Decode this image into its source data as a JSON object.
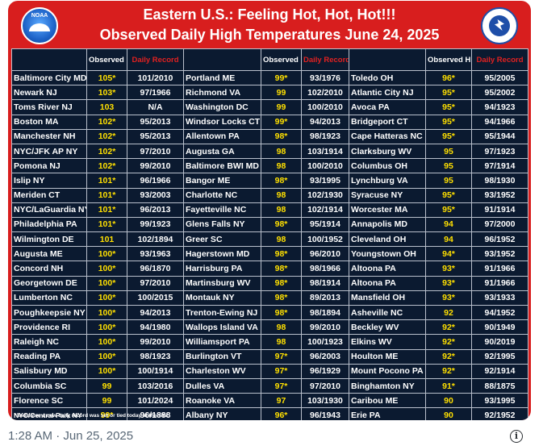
{
  "header": {
    "title_line1": "Eastern U.S.: Feeling Hot, Hot, Hot!!!",
    "title_line2": "Observed Daily High Temperatures June 24, 2025",
    "left_logo": "noaa-logo",
    "left_logo_text": "NOAA",
    "right_logo": "national-weather-service-logo"
  },
  "columns": {
    "observed": "Observed High Temp",
    "record": "Daily Record"
  },
  "rows": [
    [
      [
        "Baltimore City MD",
        "105*",
        "101/2010"
      ],
      [
        "Portland ME",
        "99*",
        "93/1976"
      ],
      [
        "Toledo OH",
        "96*",
        "95/2005"
      ]
    ],
    [
      [
        "Newark NJ",
        "103*",
        "97/1966"
      ],
      [
        "Richmond VA",
        "99",
        "102/2010"
      ],
      [
        "Atlantic City NJ",
        "95*",
        "95/2002"
      ]
    ],
    [
      [
        "Toms River NJ",
        "103",
        "N/A"
      ],
      [
        "Washington DC",
        "99",
        "100/2010"
      ],
      [
        "Avoca PA",
        "95*",
        "94/1923"
      ]
    ],
    [
      [
        "Boston MA",
        "102*",
        "95/2013"
      ],
      [
        "Windsor Locks CT",
        "99*",
        "94/2013"
      ],
      [
        "Bridgeport CT",
        "95*",
        "94/1966"
      ]
    ],
    [
      [
        "Manchester NH",
        "102*",
        "95/2013"
      ],
      [
        "Allentown PA",
        "98*",
        "98/1923"
      ],
      [
        "Cape Hatteras NC",
        "95*",
        "95/1944"
      ]
    ],
    [
      [
        "NYC/JFK AP NY",
        "102*",
        "97/2010"
      ],
      [
        "Augusta GA",
        "98",
        "103/1914"
      ],
      [
        "Clarksburg WV",
        "95",
        "97/1923"
      ]
    ],
    [
      [
        "Pomona NJ",
        "102*",
        "99/2010"
      ],
      [
        "Baltimore BWI MD",
        "98",
        "100/2010"
      ],
      [
        "Columbus OH",
        "95",
        "97/1914"
      ]
    ],
    [
      [
        "Islip NY",
        "101*",
        "96/1966"
      ],
      [
        "Bangor ME",
        "98*",
        "93/1995"
      ],
      [
        "Lynchburg VA",
        "95",
        "98/1930"
      ]
    ],
    [
      [
        "Meriden CT",
        "101*",
        "93/2003"
      ],
      [
        "Charlotte NC",
        "98",
        "102/1930"
      ],
      [
        "Syracuse NY",
        "95*",
        "93/1952"
      ]
    ],
    [
      [
        "NYC/LaGuardia NY",
        "101*",
        "96/2013"
      ],
      [
        "Fayetteville NC",
        "98",
        "102/1914"
      ],
      [
        "Worcester MA",
        "95*",
        "91/1914"
      ]
    ],
    [
      [
        "Philadelphia PA",
        "101*",
        "99/1923"
      ],
      [
        "Glens Falls NY",
        "98*",
        "95/1914"
      ],
      [
        "Annapolis MD",
        "94",
        "97/2000"
      ]
    ],
    [
      [
        "Wilmington DE",
        "101",
        "102/1894"
      ],
      [
        "Greer SC",
        "98",
        "100/1952"
      ],
      [
        "Cleveland OH",
        "94",
        "96/1952"
      ]
    ],
    [
      [
        "Augusta ME",
        "100*",
        "93/1963"
      ],
      [
        "Hagerstown MD",
        "98*",
        "96/2010"
      ],
      [
        "Youngstown OH",
        "94*",
        "93/1952"
      ]
    ],
    [
      [
        "Concord NH",
        "100*",
        "96/1870"
      ],
      [
        "Harrisburg PA",
        "98*",
        "98/1966"
      ],
      [
        "Altoona PA",
        "93*",
        "91/1966"
      ]
    ],
    [
      [
        "Georgetown DE",
        "100*",
        "97/2010"
      ],
      [
        "Martinsburg WV",
        "98*",
        "98/1914"
      ],
      [
        "Altoona PA",
        "93*",
        "91/1966"
      ]
    ],
    [
      [
        "Lumberton NC",
        "100*",
        "100/2015"
      ],
      [
        "Montauk NY",
        "98*",
        "89/2013"
      ],
      [
        "Mansfield OH",
        "93*",
        "93/1933"
      ]
    ],
    [
      [
        "Poughkeepsie NY",
        "100*",
        "94/2013"
      ],
      [
        "Trenton-Ewing NJ",
        "98*",
        "98/1894"
      ],
      [
        "Asheville NC",
        "92",
        "94/1952"
      ]
    ],
    [
      [
        "Providence RI",
        "100*",
        "94/1980"
      ],
      [
        "Wallops Island VA",
        "98",
        "99/2010"
      ],
      [
        "Beckley WV",
        "92*",
        "90/1949"
      ]
    ],
    [
      [
        "Raleigh NC",
        "100*",
        "99/2010"
      ],
      [
        "Williamsport PA",
        "98",
        "100/1923"
      ],
      [
        "Elkins WV",
        "92*",
        "90/2019"
      ]
    ],
    [
      [
        "Reading PA",
        "100*",
        "98/1923"
      ],
      [
        "Burlington VT",
        "97*",
        "96/2003"
      ],
      [
        "Houlton ME",
        "92*",
        "92/1995"
      ]
    ],
    [
      [
        "Salisbury MD",
        "100*",
        "100/1914"
      ],
      [
        "Charleston WV",
        "97*",
        "96/1929"
      ],
      [
        "Mount Pocono PA",
        "92*",
        "92/1914"
      ]
    ],
    [
      [
        "Columbia SC",
        "99",
        "103/2016"
      ],
      [
        "Dulles VA",
        "97*",
        "97/2010"
      ],
      [
        "Binghamton NY",
        "91*",
        "88/1875"
      ]
    ],
    [
      [
        "Florence SC",
        "99",
        "101/2024"
      ],
      [
        "Roanoke VA",
        "97",
        "103/1930"
      ],
      [
        "Caribou ME",
        "90",
        "93/1995"
      ]
    ],
    [
      [
        "NYC/Central Park NY",
        "99*",
        "96/1888"
      ],
      [
        "Albany NY",
        "96*",
        "96/1943"
      ],
      [
        "Erie PA",
        "90",
        "92/1952"
      ]
    ]
  ],
  "footnote": "* Indicates a new daily record was set or tied today at the site.",
  "post": {
    "timestamp": "1:28 AM · Jun 25, 2025",
    "info_icon": "i"
  },
  "colors": {
    "background_red": "#d81e1e",
    "table_navy": "#0b1a30",
    "temp_yellow": "#ffe000",
    "record_header_red": "#e02121"
  }
}
